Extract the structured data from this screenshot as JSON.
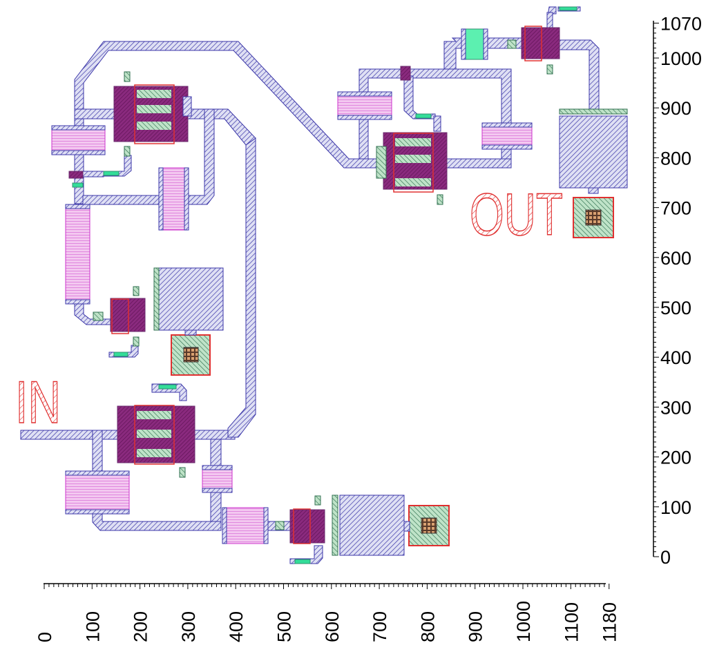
{
  "labels": {
    "in": "IN",
    "out": "OUT"
  },
  "y_axis": {
    "ticks": [
      "1070",
      "1000",
      "900",
      "800",
      "700",
      "600",
      "500",
      "400",
      "300",
      "200",
      "100",
      "0"
    ]
  },
  "x_axis": {
    "ticks": [
      "0",
      "100",
      "200",
      "300",
      "400",
      "500",
      "600",
      "700",
      "800",
      "900",
      "1000",
      "1100",
      "1180"
    ]
  },
  "colors": {
    "metal": "#3b36a8",
    "capacitor": "#cc33cc",
    "transistor": "#8a1a6e",
    "via": "#2f8f6f",
    "pad": "#e03030",
    "label": "#e03030",
    "strap": "#33dd99"
  }
}
